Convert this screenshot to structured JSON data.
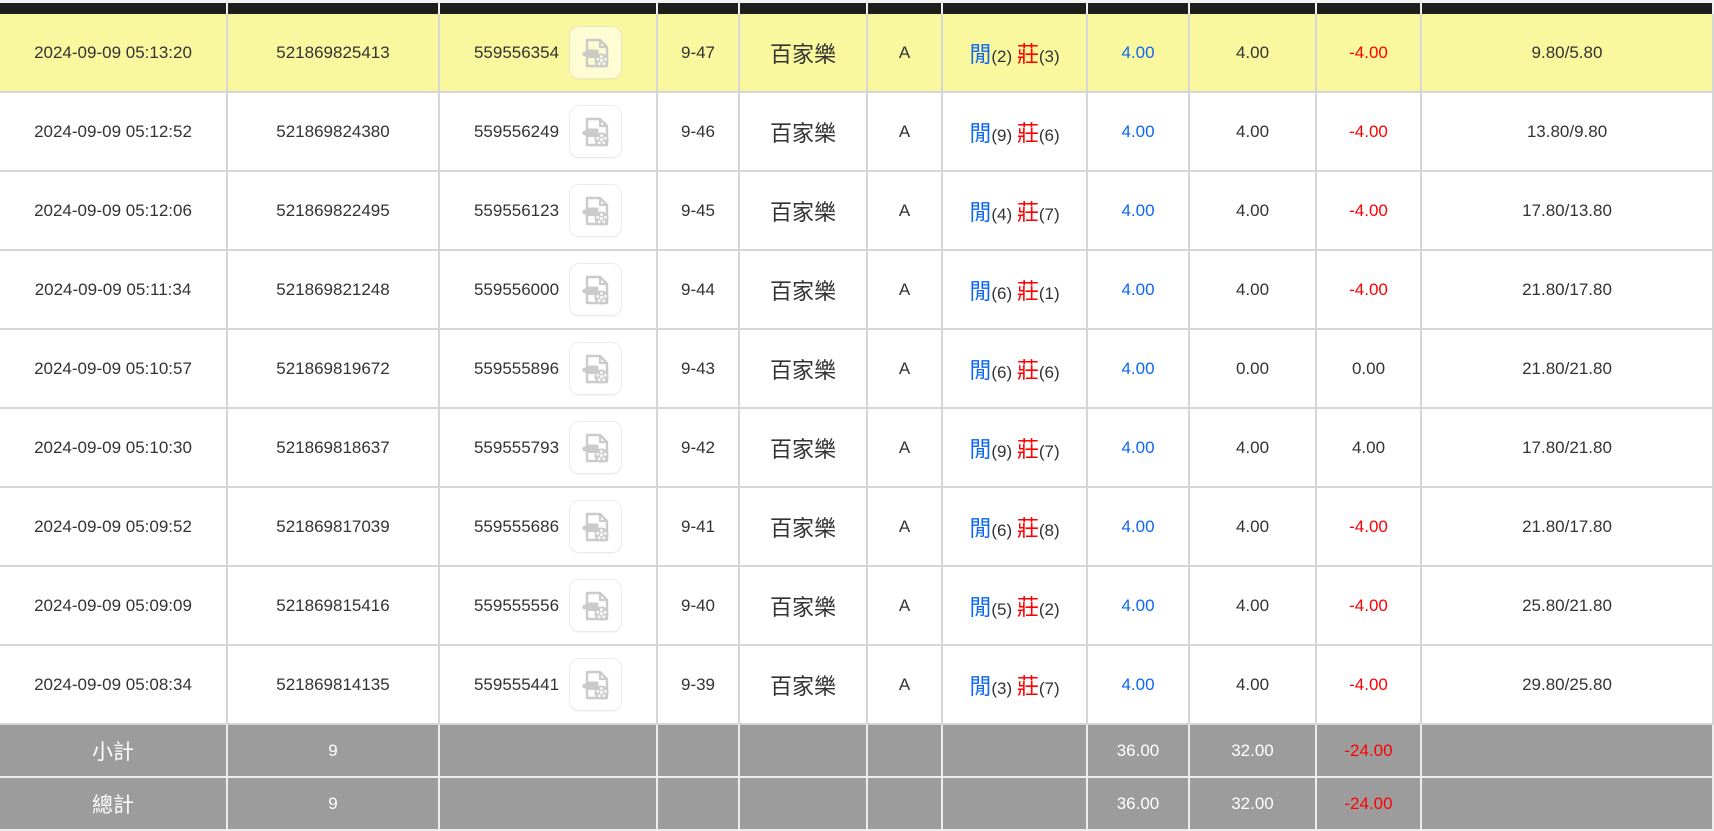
{
  "colors": {
    "highlight": "#FAF89E",
    "summary_bg": "#9C9C9C",
    "header_bg": "#1E1E1E",
    "blue": "#0C66F5",
    "red": "#FE0000",
    "text": "#333333"
  },
  "icons": {
    "video_button": "video-file-icon"
  },
  "table": {
    "column_count": 11,
    "rows": [
      {
        "highlighted": true,
        "time": "2024-09-09 05:13:20",
        "bet_id": "521869825413",
        "round_id": "559556354",
        "round": "9-47",
        "game": "百家樂",
        "table_code": "A",
        "player_label": "閒",
        "player_value": "(2)",
        "banker_label": "莊",
        "banker_value": "(3)",
        "valid_bet": "4.00",
        "bet_amount": "4.00",
        "win_loss": "-4.00",
        "balance": "9.80/5.80"
      },
      {
        "highlighted": false,
        "time": "2024-09-09 05:12:52",
        "bet_id": "521869824380",
        "round_id": "559556249",
        "round": "9-46",
        "game": "百家樂",
        "table_code": "A",
        "player_label": "閒",
        "player_value": "(9)",
        "banker_label": "莊",
        "banker_value": "(6)",
        "valid_bet": "4.00",
        "bet_amount": "4.00",
        "win_loss": "-4.00",
        "balance": "13.80/9.80"
      },
      {
        "highlighted": false,
        "time": "2024-09-09 05:12:06",
        "bet_id": "521869822495",
        "round_id": "559556123",
        "round": "9-45",
        "game": "百家樂",
        "table_code": "A",
        "player_label": "閒",
        "player_value": "(4)",
        "banker_label": "莊",
        "banker_value": "(7)",
        "valid_bet": "4.00",
        "bet_amount": "4.00",
        "win_loss": "-4.00",
        "balance": "17.80/13.80"
      },
      {
        "highlighted": false,
        "time": "2024-09-09 05:11:34",
        "bet_id": "521869821248",
        "round_id": "559556000",
        "round": "9-44",
        "game": "百家樂",
        "table_code": "A",
        "player_label": "閒",
        "player_value": "(6)",
        "banker_label": "莊",
        "banker_value": "(1)",
        "valid_bet": "4.00",
        "bet_amount": "4.00",
        "win_loss": "-4.00",
        "balance": "21.80/17.80"
      },
      {
        "highlighted": false,
        "time": "2024-09-09 05:10:57",
        "bet_id": "521869819672",
        "round_id": "559555896",
        "round": "9-43",
        "game": "百家樂",
        "table_code": "A",
        "player_label": "閒",
        "player_value": "(6)",
        "banker_label": "莊",
        "banker_value": "(6)",
        "valid_bet": "4.00",
        "bet_amount": "0.00",
        "win_loss": "0.00",
        "balance": "21.80/21.80"
      },
      {
        "highlighted": false,
        "time": "2024-09-09 05:10:30",
        "bet_id": "521869818637",
        "round_id": "559555793",
        "round": "9-42",
        "game": "百家樂",
        "table_code": "A",
        "player_label": "閒",
        "player_value": "(9)",
        "banker_label": "莊",
        "banker_value": "(7)",
        "valid_bet": "4.00",
        "bet_amount": "4.00",
        "win_loss": "4.00",
        "balance": "17.80/21.80"
      },
      {
        "highlighted": false,
        "time": "2024-09-09 05:09:52",
        "bet_id": "521869817039",
        "round_id": "559555686",
        "round": "9-41",
        "game": "百家樂",
        "table_code": "A",
        "player_label": "閒",
        "player_value": "(6)",
        "banker_label": "莊",
        "banker_value": "(8)",
        "valid_bet": "4.00",
        "bet_amount": "4.00",
        "win_loss": "-4.00",
        "balance": "21.80/17.80"
      },
      {
        "highlighted": false,
        "time": "2024-09-09 05:09:09",
        "bet_id": "521869815416",
        "round_id": "559555556",
        "round": "9-40",
        "game": "百家樂",
        "table_code": "A",
        "player_label": "閒",
        "player_value": "(5)",
        "banker_label": "莊",
        "banker_value": "(2)",
        "valid_bet": "4.00",
        "bet_amount": "4.00",
        "win_loss": "-4.00",
        "balance": "25.80/21.80"
      },
      {
        "highlighted": false,
        "time": "2024-09-09 05:08:34",
        "bet_id": "521869814135",
        "round_id": "559555441",
        "round": "9-39",
        "game": "百家樂",
        "table_code": "A",
        "player_label": "閒",
        "player_value": "(3)",
        "banker_label": "莊",
        "banker_value": "(7)",
        "valid_bet": "4.00",
        "bet_amount": "4.00",
        "win_loss": "-4.00",
        "balance": "29.80/25.80"
      }
    ],
    "summary": [
      {
        "label": "小計",
        "count": "9",
        "valid_bet": "36.00",
        "bet_amount": "32.00",
        "win_loss": "-24.00"
      },
      {
        "label": "總計",
        "count": "9",
        "valid_bet": "36.00",
        "bet_amount": "32.00",
        "win_loss": "-24.00"
      }
    ]
  }
}
